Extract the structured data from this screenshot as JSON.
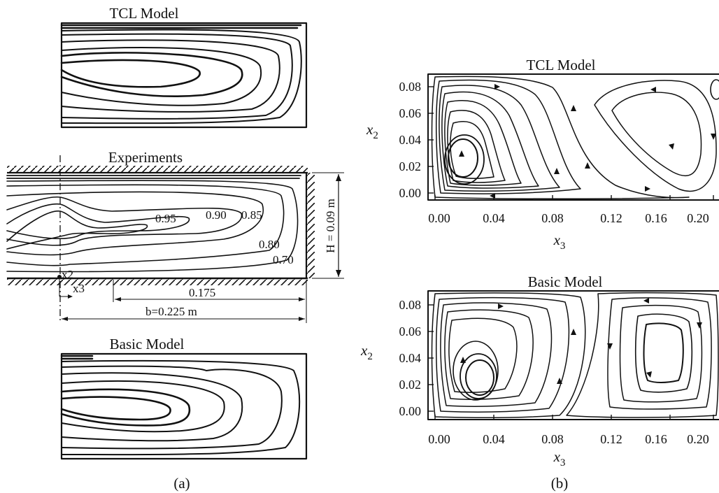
{
  "panel_a": {
    "top_title": "TCL Model",
    "mid_title": "Experiments",
    "bottom_title": "Basic Model",
    "contour_labels": [
      "0.95",
      "0.90",
      "0.85",
      "0.80",
      "0.70"
    ],
    "height_label": "H = 0.09 m",
    "dim_short": "0.175",
    "dim_long": "b=0.225 m",
    "axis_x2": "x2",
    "axis_x3": "x3",
    "caption": "(a)"
  },
  "panel_b": {
    "top_title": "TCL Model",
    "bottom_title": "Basic Model",
    "y_ticks": [
      "0.08",
      "0.06",
      "0.04",
      "0.02",
      "0.00"
    ],
    "x_ticks": [
      "0.00",
      "0.04",
      "0.08",
      "0.12",
      "0.16",
      "0.20"
    ],
    "ylabel": "x",
    "ylabel_sub": "2",
    "xlabel": "x",
    "xlabel_sub": "3",
    "caption": "(b)"
  }
}
